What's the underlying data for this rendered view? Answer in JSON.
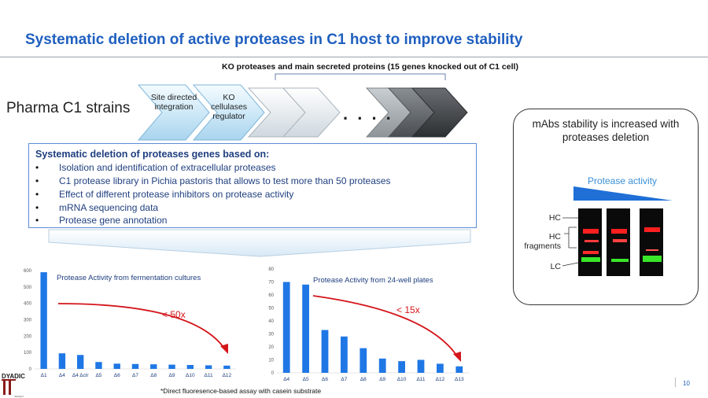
{
  "slide": {
    "title": "Systematic deletion of active proteases in C1 host to improve stability",
    "ko_label": "KO proteases and main secreted proteins (15 genes knocked out of C1 cell)",
    "strain_label": "Pharma C1 strains",
    "ellipsis": ". . . .",
    "page_number": "10",
    "footnote": "*Direct fluoresence-based assay with casein substrate",
    "logo_text": "DYADIC",
    "logo_sub": "INSIGHT"
  },
  "chevrons": [
    {
      "label": "Site directed integration"
    },
    {
      "label": "KO cellulases regulator"
    }
  ],
  "info_box": {
    "title": "Systematic deletion of proteases genes based on:",
    "bullets": [
      "Isolation and identification of extracellular proteases",
      "C1 protease library in Pichia pastoris that allows to test more than 50 proteases",
      "Effect of different protease inhibitors on protease activity",
      "mRNA sequencing data",
      "Protease gene annotation"
    ]
  },
  "stability_panel": {
    "title": "mAbs stability is increased with proteases deletion",
    "gradient_label": "Protease activity",
    "lane_labels": {
      "hc": "HC",
      "hc_fragments": "HC fragments",
      "lc": "LC"
    },
    "colors": {
      "gradient": "#1f6fd6",
      "hc_band": "#ff1f1f",
      "lc_band": "#39e62a",
      "gel": "#0a0a0a"
    }
  },
  "chart_data": [
    {
      "type": "bar",
      "title": "Protease Activity from fermentation cultures",
      "categories": [
        "Δ1",
        "Δ4",
        "Δ4 Δclr",
        "Δ5",
        "Δ6",
        "Δ7",
        "Δ8",
        "Δ9",
        "Δ10",
        "Δ11",
        "Δ12"
      ],
      "values": [
        590,
        95,
        85,
        42,
        32,
        30,
        28,
        26,
        24,
        22,
        20
      ],
      "ylim": [
        0,
        600
      ],
      "yticks": [
        "0",
        "100",
        "200",
        "300",
        "400",
        "500",
        "600"
      ],
      "annotation": "< 50x",
      "bar_color": "#1f77e6",
      "arrow_color": "#d4161b"
    },
    {
      "type": "bar",
      "title": "Protease Activity from 24-well plates",
      "categories": [
        "Δ4",
        "Δ5",
        "Δ6",
        "Δ7",
        "Δ8",
        "Δ9",
        "Δ10",
        "Δ11",
        "Δ12",
        "Δ13"
      ],
      "values": [
        70,
        68,
        33,
        28,
        19,
        11,
        9,
        10,
        7,
        5
      ],
      "ylim": [
        0,
        80
      ],
      "yticks": [
        "0",
        "10",
        "20",
        "30",
        "40",
        "50",
        "60",
        "70",
        "80"
      ],
      "annotation": "< 15x",
      "bar_color": "#1f77e6",
      "arrow_color": "#d4161b"
    }
  ]
}
